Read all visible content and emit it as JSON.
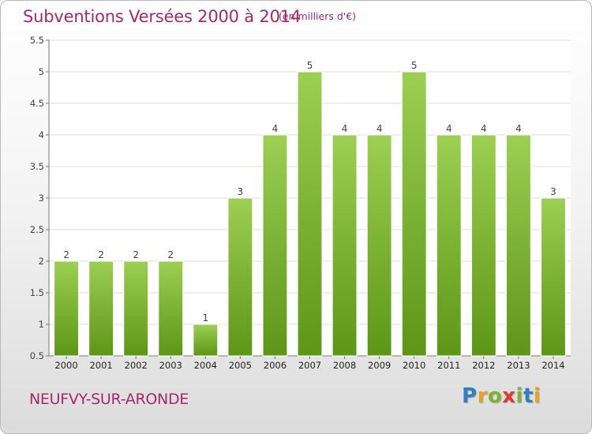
{
  "header": {
    "title": "Subventions Versées 2000 à 2014",
    "unit": "(en milliers d'€)"
  },
  "footer": {
    "commune": "NEUFVY-SUR-ARONDE",
    "logo_letters": [
      "P",
      "r",
      "o",
      "x",
      "i",
      "t",
      "i"
    ],
    "logo_colors": [
      "#2f7fc1",
      "#e8a11b",
      "#7fb231",
      "#e03a2e",
      "#7fb231",
      "#2f7fc1",
      "#e8a11b"
    ]
  },
  "colors": {
    "bar_top": "#9ccf52",
    "bar_bottom": "#5d9617",
    "bar_edge": "#ffffff",
    "text_accent": "#a52a6c"
  },
  "chart_data": {
    "type": "bar",
    "title": "Subventions Versées 2000 à 2014",
    "subtitle": "(en milliers d'€)",
    "categories": [
      "2000",
      "2001",
      "2002",
      "2003",
      "2004",
      "2005",
      "2006",
      "2007",
      "2008",
      "2009",
      "2010",
      "2011",
      "2012",
      "2013",
      "2014"
    ],
    "values": [
      2,
      2,
      2,
      2,
      1,
      3,
      4,
      5,
      4,
      4,
      5,
      4,
      4,
      4,
      3
    ],
    "data_labels": [
      "2",
      "2",
      "2",
      "2",
      "1",
      "3",
      "4",
      "5",
      "4",
      "4",
      "5",
      "4",
      "4",
      "4",
      "3"
    ],
    "ylim": [
      0.5,
      5.5
    ],
    "yticks": [
      0.5,
      1,
      1.5,
      2,
      2.5,
      3,
      3.5,
      4,
      4.5,
      5,
      5.5
    ],
    "ytick_labels": [
      "0.5",
      "1",
      "1.5",
      "2",
      "2.5",
      "3",
      "3.5",
      "4",
      "4.5",
      "5",
      "5.5"
    ],
    "grid": true,
    "legend": false
  }
}
